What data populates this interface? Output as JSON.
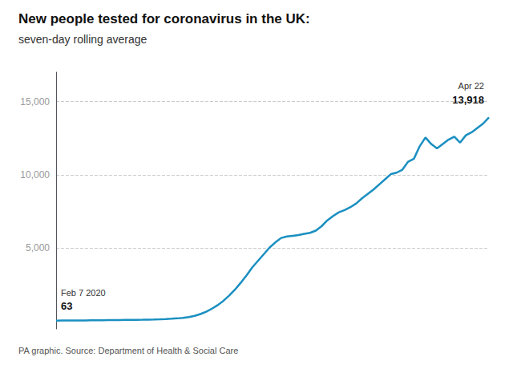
{
  "chart_data": {
    "type": "line",
    "title": "New people tested for coronavirus in the UK:",
    "subtitle": "seven-day rolling average",
    "source": "PA graphic. Source: Department of Health & Social Care",
    "color": "#1a8fc1",
    "values": [
      63,
      68,
      72,
      74,
      76,
      79,
      83,
      86,
      90,
      95,
      100,
      108,
      113,
      118,
      122,
      128,
      135,
      145,
      158,
      172,
      192,
      218,
      255,
      310,
      390,
      510,
      670,
      880,
      1120,
      1420,
      1780,
      2180,
      2650,
      3150,
      3700,
      4150,
      4600,
      5050,
      5400,
      5700,
      5800,
      5850,
      5900,
      5980,
      6050,
      6200,
      6500,
      6900,
      7200,
      7450,
      7600,
      7800,
      8050,
      8400,
      8700,
      9000,
      9350,
      9700,
      10050,
      10150,
      10350,
      10900,
      11100,
      11950,
      12550,
      12100,
      11800,
      12100,
      12400,
      12600,
      12200,
      12700,
      12900,
      13200,
      13500,
      13918
    ],
    "ylim": [
      -500,
      17000
    ],
    "yticks": [
      {
        "value": 5000,
        "label": "5,000"
      },
      {
        "value": 10000,
        "label": "10,000"
      },
      {
        "value": 15000,
        "label": "15,000"
      }
    ],
    "grid": true,
    "tick_labels": "y",
    "annotations": [
      {
        "text": "Feb 7 2020",
        "value": 63,
        "value_label": "63"
      },
      {
        "text": "Apr 22",
        "value": 13918,
        "value_label": "13,918"
      }
    ]
  }
}
